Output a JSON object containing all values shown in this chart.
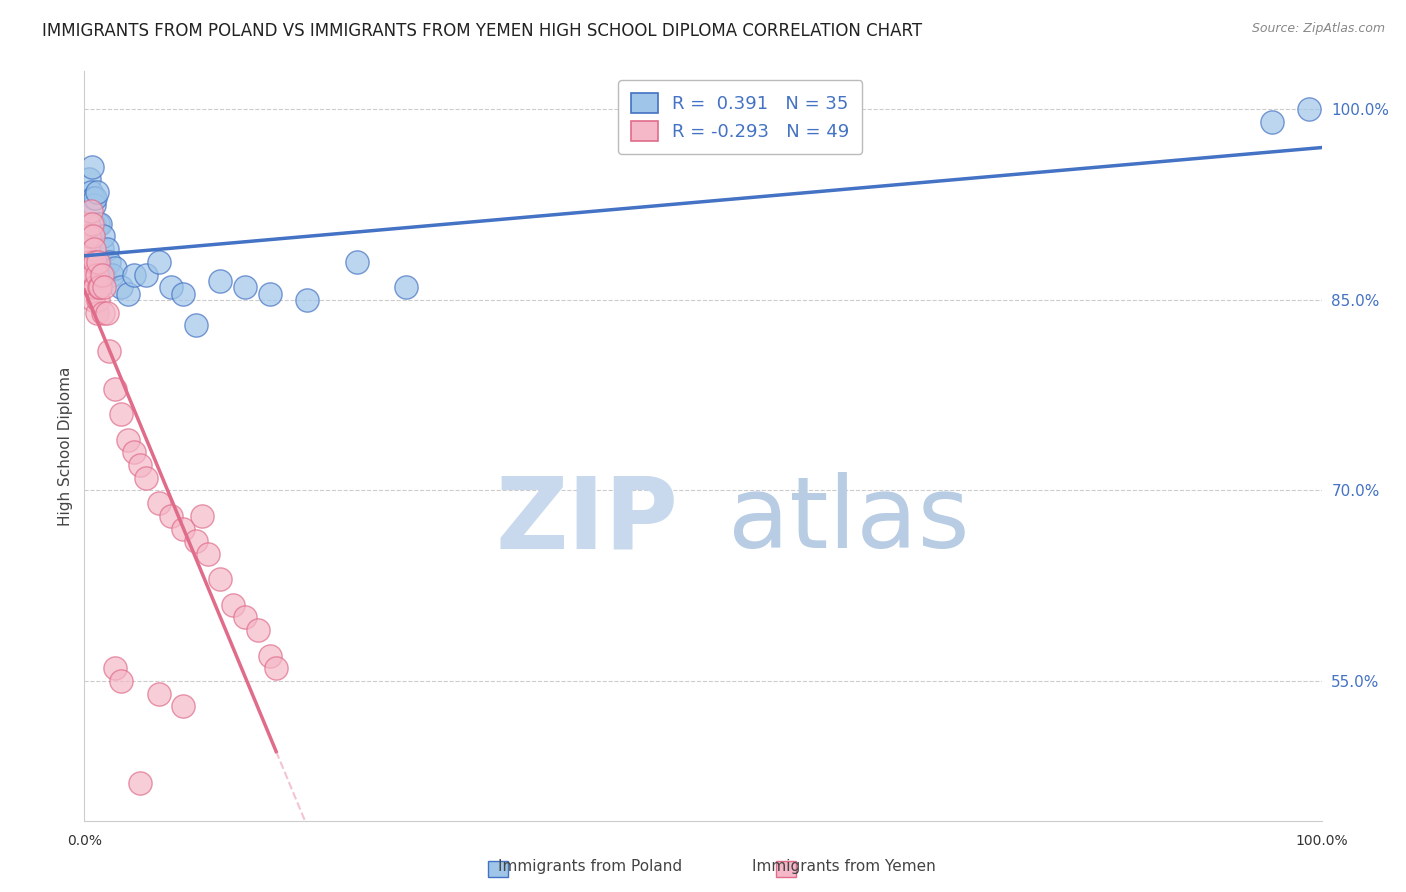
{
  "title": "IMMIGRANTS FROM POLAND VS IMMIGRANTS FROM YEMEN HIGH SCHOOL DIPLOMA CORRELATION CHART",
  "source": "Source: ZipAtlas.com",
  "ylabel": "High School Diploma",
  "xlim": [
    0.0,
    1.0
  ],
  "ylim": [
    0.44,
    1.03
  ],
  "right_yticks": [
    0.55,
    0.7,
    0.85,
    1.0
  ],
  "right_yticklabels": [
    "55.0%",
    "70.0%",
    "85.0%",
    "100.0%"
  ],
  "poland_color": "#4472c4",
  "poland_color_fill": "#9fc5e8",
  "yemen_color": "#e06c8a",
  "yemen_color_fill": "#f4b8c8",
  "poland_R": 0.391,
  "poland_N": 35,
  "yemen_R": -0.293,
  "yemen_N": 49,
  "poland_x": [
    0.004,
    0.005,
    0.006,
    0.007,
    0.007,
    0.008,
    0.008,
    0.009,
    0.01,
    0.011,
    0.012,
    0.013,
    0.014,
    0.015,
    0.016,
    0.018,
    0.02,
    0.022,
    0.025,
    0.03,
    0.035,
    0.04,
    0.05,
    0.06,
    0.07,
    0.08,
    0.09,
    0.11,
    0.13,
    0.15,
    0.18,
    0.22,
    0.26,
    0.96,
    0.99
  ],
  "poland_y": [
    0.945,
    0.935,
    0.955,
    0.93,
    0.9,
    0.91,
    0.925,
    0.93,
    0.935,
    0.91,
    0.88,
    0.91,
    0.89,
    0.9,
    0.87,
    0.89,
    0.88,
    0.87,
    0.875,
    0.86,
    0.855,
    0.87,
    0.87,
    0.88,
    0.86,
    0.855,
    0.83,
    0.865,
    0.86,
    0.855,
    0.85,
    0.88,
    0.86,
    0.99,
    1.0
  ],
  "yemen_x": [
    0.003,
    0.003,
    0.004,
    0.004,
    0.005,
    0.005,
    0.006,
    0.006,
    0.007,
    0.007,
    0.007,
    0.008,
    0.008,
    0.009,
    0.009,
    0.01,
    0.01,
    0.011,
    0.011,
    0.012,
    0.013,
    0.014,
    0.015,
    0.016,
    0.018,
    0.02,
    0.025,
    0.03,
    0.035,
    0.04,
    0.045,
    0.05,
    0.06,
    0.07,
    0.08,
    0.09,
    0.095,
    0.1,
    0.11,
    0.12,
    0.13,
    0.14,
    0.15,
    0.155,
    0.025,
    0.03,
    0.06,
    0.08,
    0.045
  ],
  "yemen_y": [
    0.91,
    0.89,
    0.9,
    0.88,
    0.92,
    0.87,
    0.91,
    0.88,
    0.9,
    0.87,
    0.85,
    0.89,
    0.86,
    0.88,
    0.86,
    0.87,
    0.84,
    0.88,
    0.85,
    0.86,
    0.86,
    0.87,
    0.84,
    0.86,
    0.84,
    0.81,
    0.78,
    0.76,
    0.74,
    0.73,
    0.72,
    0.71,
    0.69,
    0.68,
    0.67,
    0.66,
    0.68,
    0.65,
    0.63,
    0.61,
    0.6,
    0.59,
    0.57,
    0.56,
    0.56,
    0.55,
    0.54,
    0.53,
    0.47
  ],
  "watermark_zip": "ZIP",
  "watermark_atlas": "atlas",
  "watermark_color_zip": "#c8d8ed",
  "watermark_color_atlas": "#b8cce4",
  "background_color": "#ffffff",
  "title_fontsize": 12,
  "label_fontsize": 11,
  "legend_fontsize": 13,
  "source_fontsize": 9
}
